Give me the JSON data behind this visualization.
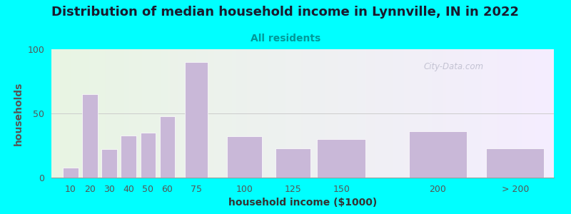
{
  "title": "Distribution of median household income in Lynnville, IN in 2022",
  "subtitle": "All residents",
  "xlabel": "household income ($1000)",
  "ylabel": "households",
  "background_outer": "#00FFFF",
  "bar_color": "#C9B8D8",
  "bar_edge_color": "#ffffff",
  "categories": [
    "10",
    "20",
    "30",
    "40",
    "50",
    "60",
    "75",
    "100",
    "125",
    "150",
    "200",
    "> 200"
  ],
  "x_positions": [
    10,
    20,
    30,
    40,
    50,
    60,
    75,
    100,
    125,
    150,
    200,
    240
  ],
  "bar_widths": [
    8,
    8,
    8,
    8,
    8,
    8,
    12,
    18,
    18,
    25,
    30,
    30
  ],
  "values": [
    8,
    65,
    22,
    33,
    35,
    48,
    90,
    32,
    23,
    30,
    36,
    23
  ],
  "ylim": [
    0,
    100
  ],
  "yticks": [
    0,
    50,
    100
  ],
  "watermark": "City-Data.com",
  "title_fontsize": 13,
  "subtitle_fontsize": 10,
  "axis_label_fontsize": 10,
  "tick_fontsize": 9,
  "title_color": "#1a1a2e",
  "subtitle_color": "#009999",
  "ylabel_color": "#555555",
  "xlabel_color": "#333333",
  "tick_color": "#555555",
  "watermark_color": "#bbbbcc",
  "grid_color": "#cccccc",
  "bg_left_color": "#e8f5e2",
  "bg_right_color": "#f0ecff"
}
